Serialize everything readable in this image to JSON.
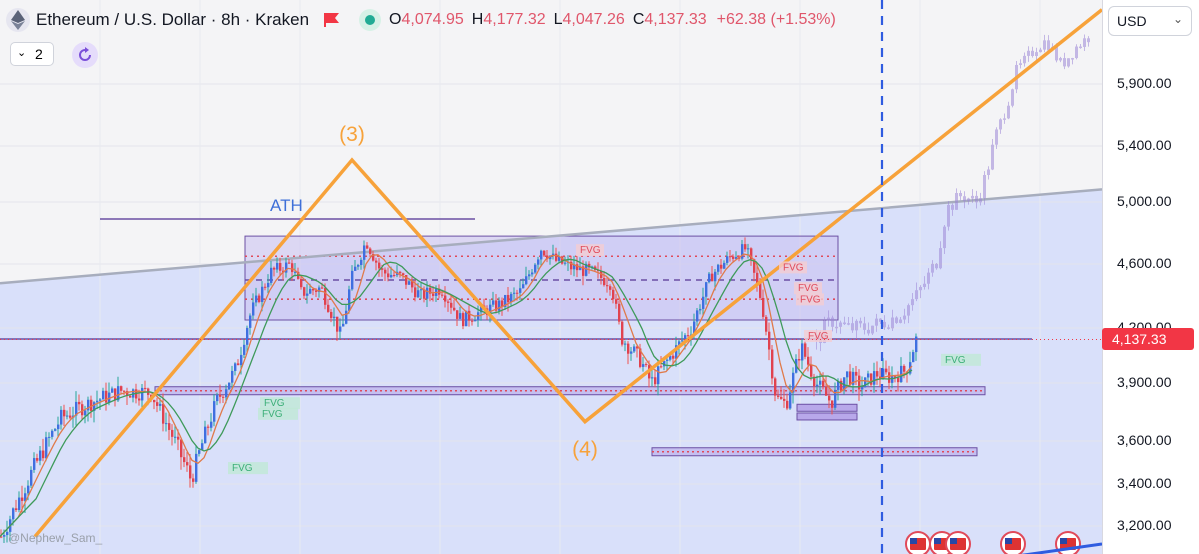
{
  "header": {
    "symbol_title": "Ethereum / U.S. Dollar · 8h · Kraken",
    "open_key": "O",
    "open_val": "4,074.95",
    "high_key": "H",
    "high_val": "4,177.32",
    "low_key": "L",
    "low_val": "4,047.26",
    "close_key": "C",
    "close_val": "4,137.33",
    "change": "+62.38 (+1.53%)"
  },
  "toolbar": {
    "indicator_count": "2"
  },
  "price_scale": {
    "currency": "USD",
    "last_price": "4,137.33"
  },
  "watermark": "@Nephew_Sam_",
  "icons": [
    "eth-logo-icon",
    "flag-icon",
    "status-dot-icon",
    "refresh-icon",
    "chevron-down-icon",
    "us-flag-icon"
  ],
  "colors": {
    "accent_up": "#26a69a",
    "accent_down": "#ef5350",
    "wave_line": "#f7a23a",
    "projection": "#9c86d6",
    "zone_fill": "#d6defb",
    "level_line": "#6b4fa3",
    "resistance_line": "#a7adbd",
    "last_price": "#f23645",
    "dashed_vertical": "#2f5ce0"
  },
  "chart_data": {
    "type": "candlestick",
    "title": "Ethereum / U.S. Dollar · 8h · Kraken",
    "ylim": [
      3150,
      6300
    ],
    "y_ticks": [
      "5,900.00",
      "5,400.00",
      "5,000.00",
      "4,600.00",
      "4,200.00",
      "3,900.00",
      "3,600.00",
      "3,400.00",
      "3,200.00"
    ],
    "y_tick_values": [
      5900,
      5400,
      5000,
      4600,
      4200,
      3900,
      3600,
      3400,
      3200
    ],
    "last_price": 4137.33,
    "price_path_bars": [
      0,
      30,
      60,
      90,
      120,
      150,
      170,
      190,
      215,
      235,
      250,
      270,
      290,
      300,
      320,
      340,
      350,
      365,
      380,
      400,
      420,
      440,
      460,
      480,
      500,
      520,
      540,
      555,
      570,
      590,
      610,
      620,
      640,
      650,
      670,
      690,
      710,
      730,
      745,
      760,
      775,
      785,
      800,
      815,
      830,
      845,
      860,
      875,
      890,
      905,
      915
    ],
    "price_path_values": [
      3150,
      3450,
      3720,
      3800,
      3860,
      3850,
      3640,
      3420,
      3800,
      3980,
      4300,
      4550,
      4600,
      4420,
      4450,
      4150,
      4500,
      4750,
      4550,
      4520,
      4400,
      4450,
      4250,
      4300,
      4350,
      4430,
      4700,
      4620,
      4580,
      4550,
      4480,
      4150,
      4020,
      3900,
      4050,
      4200,
      4530,
      4650,
      4700,
      4380,
      3820,
      3790,
      4100,
      3900,
      3800,
      3950,
      3880,
      3950,
      3930,
      3970,
      4137.33
    ],
    "projection_bars": [
      815,
      830,
      845,
      860,
      880,
      900,
      915,
      925,
      935,
      945,
      960,
      975,
      985,
      995,
      1005,
      1015,
      1025,
      1035,
      1045,
      1060,
      1075,
      1090
    ],
    "projection_values": [
      4130,
      4250,
      4200,
      4200,
      4230,
      4290,
      4400,
      4500,
      4620,
      4950,
      5050,
      5000,
      5200,
      5500,
      5720,
      6000,
      6100,
      6200,
      6250,
      6050,
      6200,
      6300
    ],
    "wave_labels": [
      {
        "label": "(3)",
        "bar": 352,
        "value": 5440
      },
      {
        "label": "(4)",
        "bar": 585,
        "value": 3530
      }
    ],
    "wave_points_bars": [
      35,
      352,
      585,
      1102
    ],
    "wave_points_values": [
      3150,
      5300,
      3700,
      6500
    ],
    "levels": [
      {
        "name": "ATH",
        "value": 4890,
        "from_bar": 100,
        "to_bar": 475
      },
      {
        "name": "range-top",
        "value": 4780,
        "from_bar": 245,
        "to_bar": 838
      },
      {
        "name": "range-bottom",
        "value": 4250,
        "from_bar": 245,
        "to_bar": 838
      },
      {
        "name": "support",
        "value": 4140,
        "from_bar": 0,
        "to_bar": 1032
      },
      {
        "name": "support-box-1",
        "value": 3860,
        "from_bar": 155,
        "to_bar": 985
      },
      {
        "name": "support-box-2",
        "value": 3550,
        "from_bar": 652,
        "to_bar": 977
      }
    ],
    "resistance_trendline": {
      "from_bar": 0,
      "from_value": 4480,
      "to_bar": 1102,
      "to_value": 5090
    },
    "fvg_labels": [
      {
        "text": "FVG",
        "color": "down",
        "bar": 590,
        "value": 4670
      },
      {
        "text": "FVG",
        "color": "down",
        "bar": 793,
        "value": 4560
      },
      {
        "text": "FVG",
        "color": "down",
        "bar": 808,
        "value": 4430
      },
      {
        "text": "FVG",
        "color": "down",
        "bar": 810,
        "value": 4360
      },
      {
        "text": "FVG",
        "color": "down",
        "bar": 818,
        "value": 4140
      },
      {
        "text": "FVG",
        "color": "up",
        "bar": 955,
        "value": 4010
      },
      {
        "text": "FVG",
        "color": "up",
        "bar": 274,
        "value": 3780
      },
      {
        "text": "FVG",
        "color": "up",
        "bar": 272,
        "value": 3725
      },
      {
        "text": "FVG",
        "color": "up",
        "bar": 242,
        "value": 3460
      }
    ],
    "annotations": [
      "ATH",
      "(3)",
      "(4)"
    ],
    "grid": true
  }
}
